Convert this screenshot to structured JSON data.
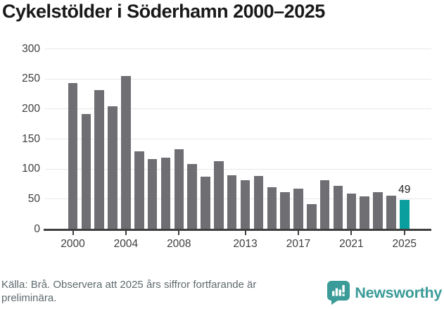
{
  "page": {
    "title": "Cykelstölder i Söderhamn 2000–2025"
  },
  "chart_data": {
    "type": "bar",
    "title": "Cykelstölder i Söderhamn 2000–2025",
    "x": [
      2000,
      2001,
      2002,
      2003,
      2004,
      2005,
      2006,
      2007,
      2008,
      2009,
      2010,
      2011,
      2012,
      2013,
      2014,
      2015,
      2016,
      2017,
      2018,
      2019,
      2020,
      2021,
      2022,
      2023,
      2024,
      2025
    ],
    "values": [
      243,
      192,
      231,
      204,
      255,
      130,
      117,
      119,
      133,
      108,
      87,
      113,
      90,
      82,
      88,
      70,
      62,
      67,
      42,
      82,
      72,
      59,
      55,
      62,
      56,
      49
    ],
    "xlabel": "",
    "ylabel": "",
    "ylim": [
      0,
      300
    ],
    "y_ticks": [
      0,
      50,
      100,
      150,
      200,
      250,
      300
    ],
    "x_tick_years": [
      2000,
      2004,
      2008,
      2013,
      2017,
      2021,
      2025
    ],
    "grid": true,
    "legend": false,
    "bar_color": "#6F6E73",
    "highlight": {
      "year": 2025,
      "value": 49,
      "label": "49",
      "color": "#0A9E9E"
    },
    "axis_color": "#3F3F3F",
    "gridline_color": "#E7E7E7",
    "tick_label_color": "#3D3D3D"
  },
  "footer": {
    "source_text": "Källa: Brå. Observera att 2025 års siffror fortfarande är preliminära.",
    "brand_name": "Newsworthy",
    "brand_color": "#3A9B98",
    "logo_icon": "bar-chart-speech-bubble-icon"
  }
}
